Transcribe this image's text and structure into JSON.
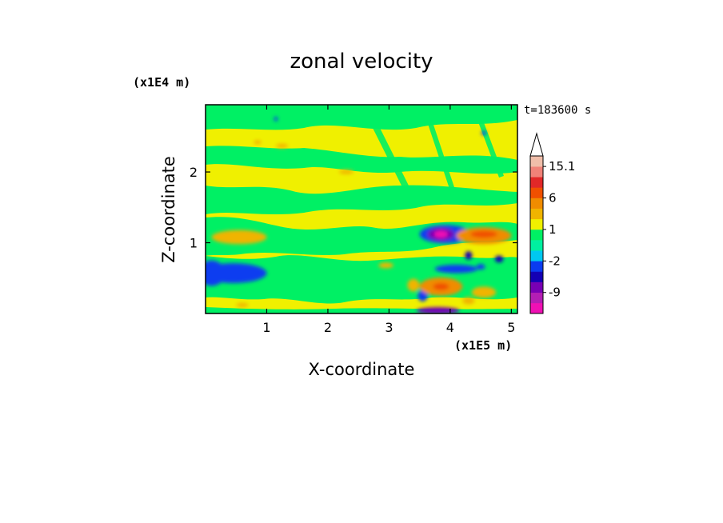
{
  "chart_data": {
    "type": "heatmap",
    "title": "zonal velocity",
    "xlabel": "X-coordinate",
    "ylabel": "Z-coordinate",
    "x_unit": "(x1E5 m)",
    "y_unit": "(x1E4 m)",
    "time_label": "t=183600 s",
    "xlim": [
      0,
      5.1
    ],
    "ylim": [
      0,
      2.95
    ],
    "x_ticks": [
      "1",
      "2",
      "3",
      "4",
      "5"
    ],
    "x_tick_values": [
      1,
      2,
      3,
      4,
      5
    ],
    "y_ticks": [
      "1",
      "2"
    ],
    "y_tick_values": [
      1,
      2
    ],
    "colorbar": {
      "levels": [
        -15,
        -12,
        -9,
        -6,
        -4,
        -2,
        -1,
        0,
        1,
        2,
        4,
        6,
        9,
        12,
        15.1
      ],
      "colors": [
        "#f010b4",
        "#b41eb4",
        "#7800b4",
        "#1400b4",
        "#0a3cf0",
        "#00c8f0",
        "#00f0a0",
        "#00f064",
        "#f0f000",
        "#f0b400",
        "#f08c00",
        "#f05000",
        "#e12828",
        "#f08278",
        "#f0beaa"
      ],
      "labels": [
        "15.1",
        "6",
        "1",
        "-2",
        "-9"
      ],
      "label_values": [
        15.1,
        6,
        1,
        -2,
        -9
      ],
      "max_arrow": true
    },
    "blobs": [
      {
        "x": 3.92,
        "z": 1.12,
        "rx": 0.42,
        "rz": 0.13,
        "value": -4
      },
      {
        "x": 3.85,
        "z": 1.12,
        "rx": 0.22,
        "rz": 0.09,
        "value": -8
      },
      {
        "x": 3.85,
        "z": 1.12,
        "rx": 0.11,
        "rz": 0.05,
        "value": -13
      },
      {
        "x": 0.45,
        "z": 0.57,
        "rx": 0.55,
        "rz": 0.14,
        "value": -3
      },
      {
        "x": 0.1,
        "z": 0.57,
        "rx": 0.22,
        "rz": 0.18,
        "value": -4
      },
      {
        "x": 4.1,
        "z": 0.63,
        "rx": 0.35,
        "rz": 0.06,
        "value": -3
      },
      {
        "x": 4.3,
        "z": 0.82,
        "rx": 0.06,
        "rz": 0.06,
        "value": -6
      },
      {
        "x": 4.8,
        "z": 0.77,
        "rx": 0.07,
        "rz": 0.05,
        "value": -6
      },
      {
        "x": 4.5,
        "z": 0.66,
        "rx": 0.07,
        "rz": 0.04,
        "value": -3
      },
      {
        "x": 3.8,
        "z": 0.04,
        "rx": 0.35,
        "rz": 0.05,
        "value": -7
      },
      {
        "x": 3.55,
        "z": 0.25,
        "rx": 0.08,
        "rz": 0.08,
        "value": -3
      },
      {
        "x": 4.55,
        "z": 1.1,
        "rx": 0.45,
        "rz": 0.12,
        "value": 4
      },
      {
        "x": 4.55,
        "z": 1.12,
        "rx": 0.22,
        "rz": 0.05,
        "value": 7
      },
      {
        "x": 3.85,
        "z": 0.38,
        "rx": 0.35,
        "rz": 0.13,
        "value": 4
      },
      {
        "x": 3.85,
        "z": 0.38,
        "rx": 0.13,
        "rz": 0.05,
        "value": 7
      },
      {
        "x": 3.4,
        "z": 0.4,
        "rx": 0.1,
        "rz": 0.09,
        "value": 3
      },
      {
        "x": 0.55,
        "z": 1.08,
        "rx": 0.45,
        "rz": 0.1,
        "value": 3
      },
      {
        "x": 4.55,
        "z": 0.3,
        "rx": 0.2,
        "rz": 0.08,
        "value": 3
      },
      {
        "x": 4.3,
        "z": 0.18,
        "rx": 0.1,
        "rz": 0.05,
        "value": 3
      },
      {
        "x": 0.85,
        "z": 2.42,
        "rx": 0.06,
        "rz": 0.03,
        "value": 3
      },
      {
        "x": 1.25,
        "z": 2.37,
        "rx": 0.1,
        "rz": 0.03,
        "value": 3
      },
      {
        "x": 2.3,
        "z": 2.0,
        "rx": 0.12,
        "rz": 0.03,
        "value": 3
      },
      {
        "x": 0.6,
        "z": 0.12,
        "rx": 0.1,
        "rz": 0.03,
        "value": 3
      },
      {
        "x": 2.95,
        "z": 0.68,
        "rx": 0.12,
        "rz": 0.04,
        "value": 3
      },
      {
        "x": 1.15,
        "z": 2.75,
        "rx": 0.03,
        "rz": 0.03,
        "value": -3
      },
      {
        "x": 4.55,
        "z": 2.55,
        "rx": 0.04,
        "rz": 0.03,
        "value": -3
      }
    ]
  }
}
